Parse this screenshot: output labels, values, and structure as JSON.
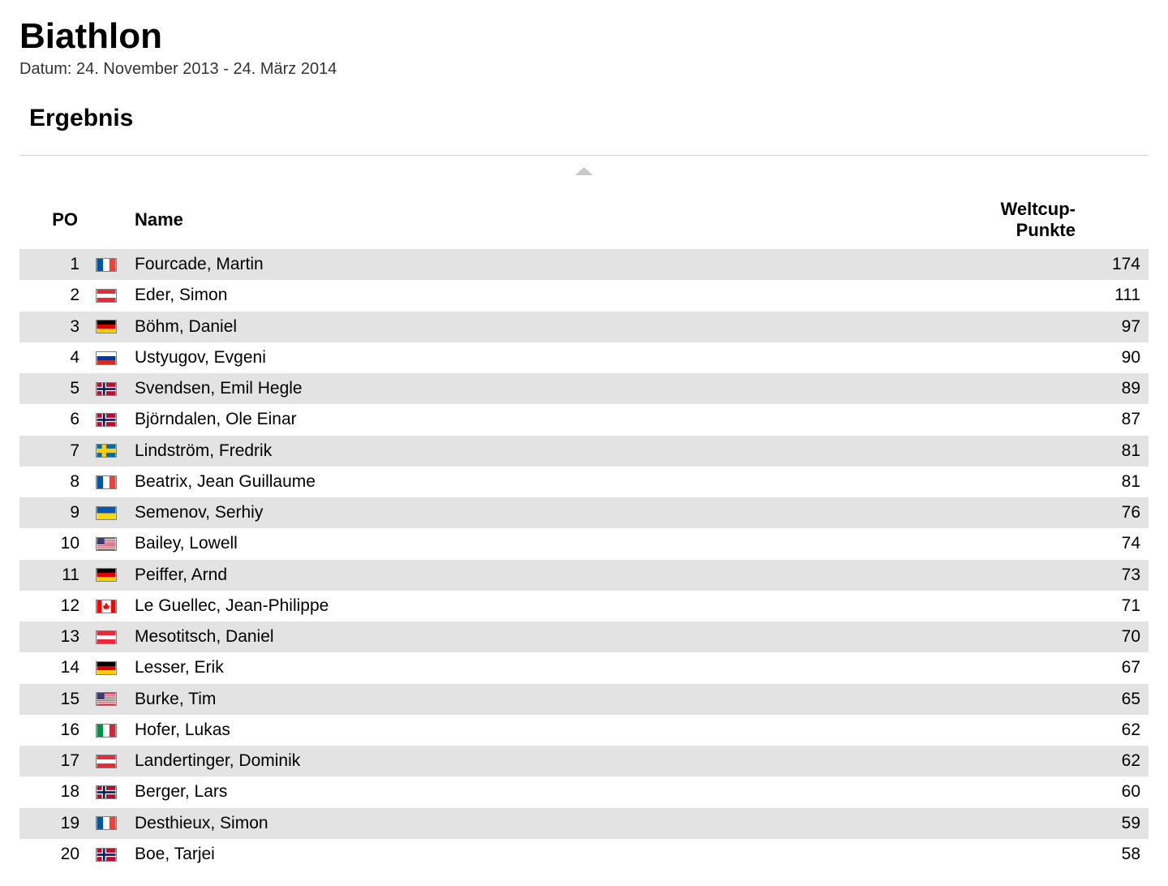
{
  "header": {
    "title": "Biathlon",
    "date_label": "Datum: 24. November 2013 - 24. März 2014",
    "section_title": "Ergebnis"
  },
  "table": {
    "columns": {
      "position": "PO",
      "name": "Name",
      "points": "Weltcup-Punkte"
    },
    "row_colors": {
      "odd": "#e3e3e3",
      "even": "#ffffff"
    },
    "header_fontsize": 22,
    "body_fontsize": 21,
    "rows": [
      {
        "pos": 1,
        "country": "france",
        "name": "Fourcade, Martin",
        "points": 174
      },
      {
        "pos": 2,
        "country": "austria",
        "name": "Eder, Simon",
        "points": 111
      },
      {
        "pos": 3,
        "country": "germany",
        "name": "Böhm, Daniel",
        "points": 97
      },
      {
        "pos": 4,
        "country": "russia",
        "name": "Ustyugov, Evgeni",
        "points": 90
      },
      {
        "pos": 5,
        "country": "norway",
        "name": "Svendsen, Emil Hegle",
        "points": 89
      },
      {
        "pos": 6,
        "country": "norway",
        "name": "Björndalen, Ole Einar",
        "points": 87
      },
      {
        "pos": 7,
        "country": "sweden",
        "name": "Lindström, Fredrik",
        "points": 81
      },
      {
        "pos": 8,
        "country": "france",
        "name": "Beatrix, Jean Guillaume",
        "points": 81
      },
      {
        "pos": 9,
        "country": "ukraine",
        "name": "Semenov, Serhiy",
        "points": 76
      },
      {
        "pos": 10,
        "country": "usa",
        "name": "Bailey, Lowell",
        "points": 74
      },
      {
        "pos": 11,
        "country": "germany",
        "name": "Peiffer, Arnd",
        "points": 73
      },
      {
        "pos": 12,
        "country": "canada",
        "name": "Le Guellec, Jean-Philippe",
        "points": 71
      },
      {
        "pos": 13,
        "country": "austria",
        "name": "Mesotitsch, Daniel",
        "points": 70
      },
      {
        "pos": 14,
        "country": "germany",
        "name": "Lesser, Erik",
        "points": 67
      },
      {
        "pos": 15,
        "country": "usa",
        "name": "Burke, Tim",
        "points": 65
      },
      {
        "pos": 16,
        "country": "italy",
        "name": "Hofer, Lukas",
        "points": 62
      },
      {
        "pos": 17,
        "country": "austria",
        "name": "Landertinger, Dominik",
        "points": 62
      },
      {
        "pos": 18,
        "country": "norway",
        "name": "Berger, Lars",
        "points": 60
      },
      {
        "pos": 19,
        "country": "france",
        "name": "Desthieux, Simon",
        "points": 59
      },
      {
        "pos": 20,
        "country": "norway",
        "name": "Boe, Tarjei",
        "points": 58
      }
    ]
  },
  "flags": {
    "france": {
      "type": "v3",
      "colors": [
        "#0055a4",
        "#ffffff",
        "#ef4135"
      ]
    },
    "austria": {
      "type": "h3",
      "colors": [
        "#ed2939",
        "#ffffff",
        "#ed2939"
      ]
    },
    "germany": {
      "type": "h3",
      "colors": [
        "#000000",
        "#dd0000",
        "#ffce00"
      ]
    },
    "russia": {
      "type": "h3",
      "colors": [
        "#ffffff",
        "#0039a6",
        "#d52b1e"
      ]
    },
    "norway": {
      "type": "nordic",
      "bg": "#ba0c2f",
      "outer": "#ffffff",
      "inner": "#00205b"
    },
    "sweden": {
      "type": "nordic",
      "bg": "#006aa7",
      "outer": "#fecc02",
      "inner": "#fecc02"
    },
    "ukraine": {
      "type": "h2",
      "colors": [
        "#0057b7",
        "#ffd700"
      ]
    },
    "usa": {
      "type": "usa",
      "stripe1": "#b22234",
      "stripe2": "#ffffff",
      "canton": "#3c3b6e"
    },
    "canada": {
      "type": "canada",
      "side": "#ff0000",
      "mid": "#ffffff",
      "leaf": "#ff0000"
    },
    "italy": {
      "type": "v3",
      "colors": [
        "#009246",
        "#ffffff",
        "#ce2b37"
      ]
    }
  },
  "styling": {
    "background_color": "#ffffff",
    "text_color": "#000000",
    "divider_color": "#cfcfcf",
    "collapse_icon_color": "#c8c8c8",
    "title_fontsize": 44,
    "date_fontsize": 20,
    "section_fontsize": 30
  }
}
